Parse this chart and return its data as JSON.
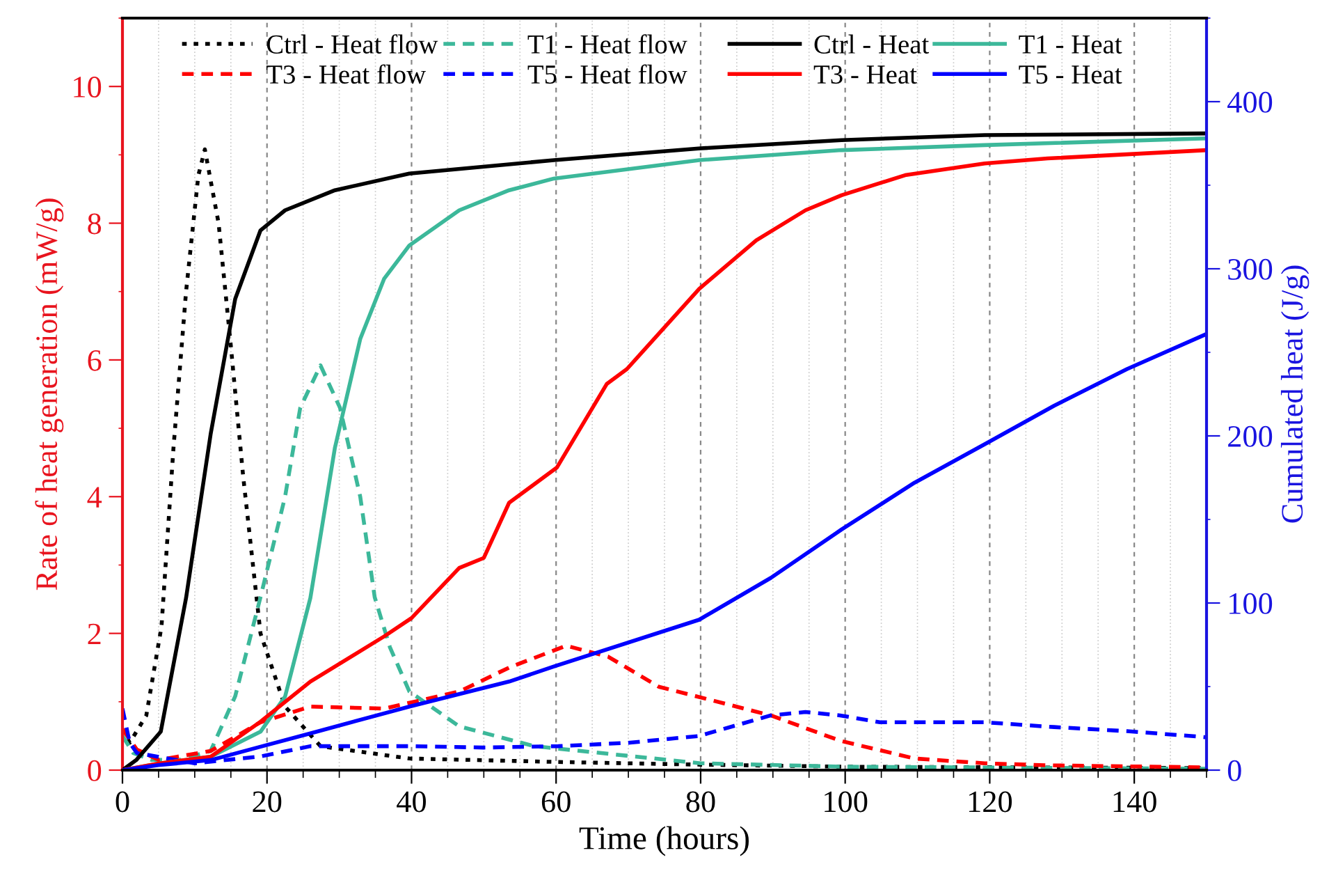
{
  "chart_data": {
    "type": "line",
    "xlabel": "Time (hours)",
    "ylabel": "Rate of heat generation (mW/g)",
    "y2label": "Cumulated heat (J/g)",
    "xlim": [
      0,
      150
    ],
    "xticks": [
      0,
      20,
      40,
      60,
      80,
      100,
      120,
      140
    ],
    "ylim": [
      0,
      11
    ],
    "yticks": [
      0,
      2,
      4,
      6,
      8,
      10
    ],
    "y2lim": [
      0,
      450
    ],
    "y2ticks": [
      0,
      100,
      200,
      300,
      400
    ],
    "grid": "x",
    "legend": "top",
    "marker": "none",
    "series": [
      {
        "name": "Ctrl - Heat flow",
        "color": "#000000",
        "line_style": "dotted",
        "x": [
          0,
          1,
          3.3,
          5.4,
          7.05,
          8.8,
          10.5,
          11.4,
          13.3,
          15,
          16.7,
          19.1,
          22.5,
          27.4,
          39.7,
          60,
          80,
          100,
          150
        ],
        "values": [
          0.6,
          0.4,
          0.8,
          2.1,
          4.7,
          7.0,
          8.7,
          9.08,
          8.0,
          6.2,
          4.3,
          2.0,
          0.93,
          0.35,
          0.17,
          0.12,
          0.08,
          0.05,
          0.03
        ]
      },
      {
        "name": "T1 - Heat flow",
        "color": "#3cb89a",
        "line_style": "dashed",
        "x": [
          0,
          1.5,
          4,
          8,
          12.2,
          15.6,
          19.1,
          22.5,
          24.6,
          27.4,
          30.1,
          32.9,
          34.9,
          37,
          39.7,
          46.6,
          57,
          80,
          100,
          150
        ],
        "values": [
          0.5,
          0.25,
          0.15,
          0.15,
          0.28,
          1.08,
          2.53,
          4.0,
          5.3,
          5.92,
          5.3,
          4.0,
          2.53,
          1.8,
          1.15,
          0.64,
          0.35,
          0.1,
          0.05,
          0.02
        ]
      },
      {
        "name": "T3 - Heat flow",
        "color": "#ff0000",
        "line_style": "dashed",
        "x": [
          0,
          2,
          5,
          12.2,
          19.1,
          26,
          36.2,
          46.6,
          53.5,
          61.4,
          67.2,
          74.2,
          79.4,
          89.7,
          99.3,
          109.6,
          119.3,
          128,
          150
        ],
        "values": [
          0.6,
          0.3,
          0.15,
          0.28,
          0.7,
          0.93,
          0.9,
          1.15,
          1.5,
          1.82,
          1.66,
          1.22,
          1.08,
          0.8,
          0.43,
          0.17,
          0.1,
          0.07,
          0.04
        ]
      },
      {
        "name": "T5 - Heat flow",
        "color": "#0000ff",
        "line_style": "dashed",
        "x": [
          0,
          1,
          2,
          10,
          19.1,
          26,
          40,
          50,
          60.3,
          70,
          79.8,
          89.7,
          94.5,
          99.3,
          104.8,
          119.3,
          128.9,
          139,
          149,
          150
        ],
        "values": [
          0.9,
          0.4,
          0.25,
          0.1,
          0.2,
          0.35,
          0.35,
          0.33,
          0.35,
          0.4,
          0.5,
          0.8,
          0.85,
          0.8,
          0.7,
          0.7,
          0.63,
          0.57,
          0.49,
          0.48
        ]
      },
      {
        "name": "Ctrl - Heat",
        "color": "#000000",
        "line_style": "solid",
        "axis": "y2",
        "x": [
          0,
          1.9,
          5.3,
          8.8,
          12.2,
          15.6,
          19.1,
          22.5,
          29.4,
          39.7,
          59.7,
          79.7,
          99.5,
          119.3,
          150
        ],
        "values": [
          0,
          6,
          23,
          103,
          201,
          282,
          323,
          335,
          347,
          357,
          365,
          372,
          377,
          380,
          381
        ]
      },
      {
        "name": "T1 - Heat",
        "color": "#3cb89a",
        "line_style": "solid",
        "axis": "y2",
        "x": [
          0,
          5,
          12.2,
          19.1,
          22.5,
          26,
          29.4,
          32.9,
          36.2,
          39.7,
          46.6,
          53.5,
          59.7,
          79.8,
          99.5,
          119.3,
          150
        ],
        "values": [
          0,
          4,
          8,
          23,
          44,
          103,
          193,
          258,
          294,
          314,
          335,
          347,
          354,
          365,
          371,
          374,
          378
        ]
      },
      {
        "name": "T3 - Heat",
        "color": "#ff0000",
        "line_style": "solid",
        "axis": "y2",
        "x": [
          0,
          5,
          12.2,
          19.1,
          26,
          36.2,
          40,
          46.6,
          50,
          53.5,
          60.1,
          67,
          69.8,
          79.8,
          87.7,
          94.5,
          99.5,
          108.3,
          119.3,
          128,
          150
        ],
        "values": [
          0,
          4,
          8,
          29,
          53,
          80,
          91,
          121,
          127,
          160,
          181,
          231,
          240,
          288,
          317,
          335,
          344,
          356,
          363,
          366,
          371
        ]
      },
      {
        "name": "T5 - Heat",
        "color": "#0000ff",
        "line_style": "solid",
        "axis": "y2",
        "x": [
          0,
          5,
          12.2,
          19.1,
          26,
          39.7,
          53.5,
          59.7,
          79.8,
          89.7,
          99.5,
          109.6,
          119.3,
          128.9,
          139,
          150
        ],
        "values": [
          0,
          3,
          6,
          14,
          22,
          38,
          53,
          62,
          90,
          115,
          144,
          172,
          195,
          218,
          240,
          261
        ]
      }
    ]
  }
}
